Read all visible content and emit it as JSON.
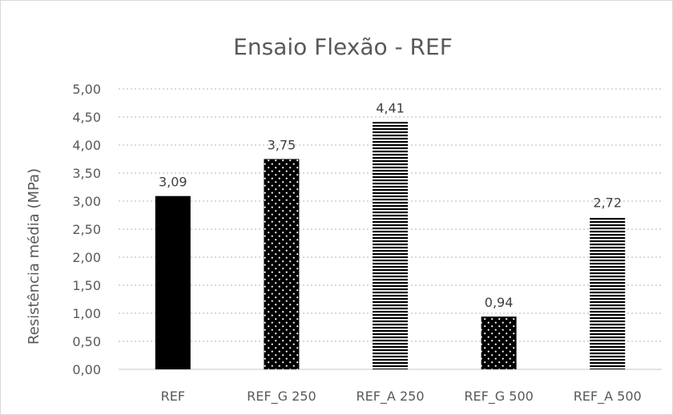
{
  "chart_data": {
    "type": "bar",
    "title": "Ensaio Flexão - REF",
    "xlabel": "",
    "ylabel": "Resistência média (MPa)",
    "categories": [
      "REF",
      "REF_G 250",
      "REF_A 250",
      "REF_G 500",
      "REF_A 500"
    ],
    "values": [
      3.09,
      3.75,
      4.41,
      0.94,
      2.72
    ],
    "value_labels": [
      "3,09",
      "3,75",
      "4,41",
      "0,94",
      "2,72"
    ],
    "fills": [
      "solid",
      "dots",
      "hstripes",
      "dots",
      "hstripes"
    ],
    "ylim": [
      0,
      5
    ],
    "yticks": [
      "0,00",
      "0,50",
      "1,00",
      "1,50",
      "2,00",
      "2,50",
      "3,00",
      "3,50",
      "4,00",
      "4,50",
      "5,00"
    ],
    "grid": true,
    "legend": "none",
    "colors": {
      "bar": "#000000",
      "grid": "#d9d9d9",
      "text": "#595959"
    }
  }
}
